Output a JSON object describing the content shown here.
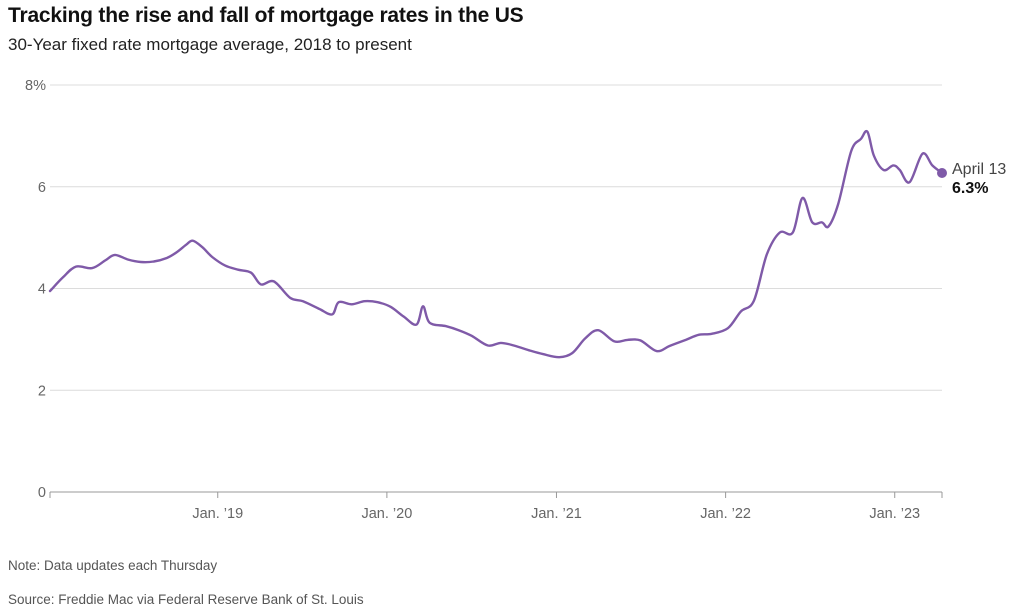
{
  "header": {
    "title": "Tracking the rise and fall of mortgage rates in the US",
    "subtitle": "30-Year fixed rate mortgage average, 2018 to present"
  },
  "footer": {
    "note": "Note: Data updates each Thursday",
    "source": "Source: Freddie Mac via Federal Reserve Bank of St. Louis"
  },
  "chart_data": {
    "type": "line",
    "title": "Tracking the rise and fall of mortgage rates in the US",
    "subtitle": "30-Year fixed rate mortgage average, 2018 to present",
    "xlabel": "",
    "ylabel": "",
    "ylim": [
      0,
      8
    ],
    "xlim": [
      "2018-01-04",
      "2023-04-13"
    ],
    "grid": true,
    "y_ticks": [
      {
        "value": 8,
        "label": "8%"
      },
      {
        "value": 6,
        "label": "6"
      },
      {
        "value": 4,
        "label": "4"
      },
      {
        "value": 2,
        "label": "2"
      },
      {
        "value": 0,
        "label": "0"
      }
    ],
    "x_ticks": [
      {
        "date": "2019-01-01",
        "label": "Jan. ’19"
      },
      {
        "date": "2020-01-01",
        "label": "Jan. ’20"
      },
      {
        "date": "2021-01-01",
        "label": "Jan. ’21"
      },
      {
        "date": "2022-01-01",
        "label": "Jan. ’22"
      },
      {
        "date": "2023-01-01",
        "label": "Jan. ’23"
      }
    ],
    "line_color": "#7f5aa8",
    "series": [
      {
        "x": [
          "2018-01-04",
          "2018-02-01",
          "2018-03-01",
          "2018-04-05",
          "2018-05-03",
          "2018-05-24",
          "2018-06-21",
          "2018-07-19",
          "2018-08-16",
          "2018-09-13",
          "2018-10-04",
          "2018-10-25",
          "2018-11-08",
          "2018-11-29",
          "2018-12-20",
          "2019-01-17",
          "2019-02-14",
          "2019-03-14",
          "2019-04-04",
          "2019-05-02",
          "2019-06-06",
          "2019-07-04",
          "2019-08-08",
          "2019-09-05",
          "2019-09-19",
          "2019-10-17",
          "2019-11-14",
          "2019-12-12",
          "2020-01-09",
          "2020-02-06",
          "2020-03-05",
          "2020-03-19",
          "2020-04-02",
          "2020-05-07",
          "2020-06-04",
          "2020-07-02",
          "2020-08-06",
          "2020-09-03",
          "2020-10-01",
          "2020-11-05",
          "2020-12-03",
          "2021-01-07",
          "2021-02-04",
          "2021-03-04",
          "2021-04-01",
          "2021-05-06",
          "2021-06-03",
          "2021-07-01",
          "2021-08-05",
          "2021-09-02",
          "2021-10-07",
          "2021-11-04",
          "2021-12-02",
          "2022-01-06",
          "2022-02-03",
          "2022-03-03",
          "2022-03-31",
          "2022-04-28",
          "2022-05-26",
          "2022-06-16",
          "2022-07-07",
          "2022-07-28",
          "2022-08-11",
          "2022-09-01",
          "2022-09-29",
          "2022-10-20",
          "2022-11-03",
          "2022-11-17",
          "2022-12-08",
          "2022-12-29",
          "2023-01-12",
          "2023-02-02",
          "2023-03-02",
          "2023-03-23",
          "2023-04-13"
        ],
        "values": [
          3.95,
          4.22,
          4.43,
          4.4,
          4.55,
          4.66,
          4.57,
          4.52,
          4.53,
          4.6,
          4.71,
          4.86,
          4.94,
          4.81,
          4.62,
          4.45,
          4.37,
          4.31,
          4.08,
          4.14,
          3.82,
          3.75,
          3.6,
          3.49,
          3.73,
          3.69,
          3.75,
          3.73,
          3.64,
          3.45,
          3.29,
          3.65,
          3.33,
          3.26,
          3.18,
          3.07,
          2.88,
          2.93,
          2.88,
          2.78,
          2.71,
          2.65,
          2.73,
          3.02,
          3.18,
          2.96,
          2.99,
          2.98,
          2.77,
          2.87,
          2.99,
          3.09,
          3.11,
          3.22,
          3.55,
          3.76,
          4.67,
          5.1,
          5.1,
          5.78,
          5.3,
          5.3,
          5.22,
          5.66,
          6.7,
          6.94,
          7.08,
          6.61,
          6.33,
          6.42,
          6.33,
          6.09,
          6.65,
          6.42,
          6.27
        ]
      }
    ],
    "annotation": {
      "date": "2023-04-13",
      "label": "April 13",
      "value_label": "6.3%"
    }
  }
}
